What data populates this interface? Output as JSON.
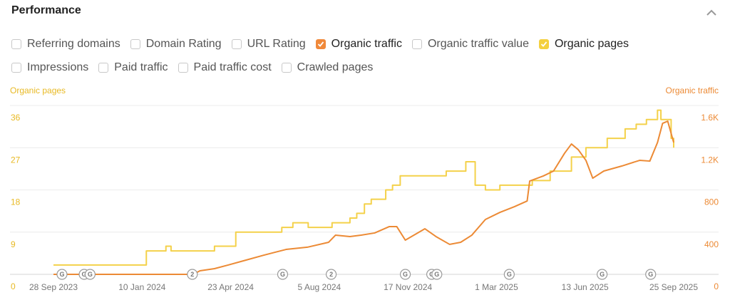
{
  "title": "Performance",
  "options": [
    [
      {
        "label": "Referring domains",
        "checked": false
      },
      {
        "label": "Domain Rating",
        "checked": false
      },
      {
        "label": "URL Rating",
        "checked": false
      },
      {
        "label": "Organic traffic",
        "checked": true,
        "color": "#f0893a"
      },
      {
        "label": "Organic traffic value",
        "checked": false
      },
      {
        "label": "Organic pages",
        "checked": true,
        "color": "#f4d03f"
      }
    ],
    [
      {
        "label": "Impressions",
        "checked": false
      },
      {
        "label": "Paid traffic",
        "checked": false
      },
      {
        "label": "Paid traffic cost",
        "checked": false
      },
      {
        "label": "Crawled pages",
        "checked": false
      }
    ]
  ],
  "chart_data": {
    "type": "line",
    "y_label": "Organic pages",
    "y2_label": "Organic traffic",
    "xlim": [
      "2023-09-28",
      "2025-09-25"
    ],
    "xticks": [
      {
        "value": "2023-09-28",
        "label": "28 Sep 2023"
      },
      {
        "value": "2024-01-10",
        "label": "10 Jan 2024"
      },
      {
        "value": "2024-04-23",
        "label": "23 Apr 2024"
      },
      {
        "value": "2024-08-05",
        "label": "5 Aug 2024"
      },
      {
        "value": "2024-11-17",
        "label": "17 Nov 2024"
      },
      {
        "value": "2025-03-01",
        "label": "1 Mar 2025"
      },
      {
        "value": "2025-06-13",
        "label": "13 Jun 2025"
      },
      {
        "value": "2025-09-25",
        "label": "25 Sep 2025"
      }
    ],
    "ylim": [
      0,
      36
    ],
    "yticks": [
      0,
      9,
      18,
      27,
      36
    ],
    "y2lim": [
      0,
      1600
    ],
    "y2ticks": [
      0,
      400,
      800,
      {
        "value": 1200,
        "label": "1.2K"
      },
      {
        "value": 1600,
        "label": "1.6K"
      }
    ],
    "grid": true,
    "series": [
      {
        "name": "Organic pages",
        "color": "#f4d14a",
        "step": true,
        "x": [
          "2023-09-28",
          "2024-01-15",
          "2024-02-07",
          "2024-02-13",
          "2024-04-04",
          "2024-04-29",
          "2024-06-22",
          "2024-07-05",
          "2024-07-23",
          "2024-08-20",
          "2024-09-10",
          "2024-09-18",
          "2024-09-27",
          "2024-10-05",
          "2024-10-22",
          "2024-10-30",
          "2024-11-08",
          "2025-01-01",
          "2025-01-24",
          "2025-02-04",
          "2025-02-16",
          "2025-03-05",
          "2025-04-12",
          "2025-05-03",
          "2025-05-28",
          "2025-06-14",
          "2025-07-09",
          "2025-07-30",
          "2025-08-12",
          "2025-08-24",
          "2025-09-06",
          "2025-09-10",
          "2025-09-22",
          "2025-09-25"
        ],
        "values": [
          2,
          5,
          6,
          5,
          6,
          9,
          10,
          11,
          10,
          11,
          12,
          13,
          15,
          16,
          18,
          19,
          21,
          22,
          24,
          19,
          18,
          19,
          20,
          22,
          25,
          27,
          29,
          31,
          32,
          33,
          35,
          33,
          29,
          27
        ]
      },
      {
        "name": "Organic traffic",
        "color": "#ec8a35",
        "axis": "y2",
        "x": [
          "2023-09-28",
          "2024-03-10",
          "2024-03-18",
          "2024-04-04",
          "2024-04-20",
          "2024-05-11",
          "2024-06-01",
          "2024-06-27",
          "2024-07-22",
          "2024-08-16",
          "2024-08-24",
          "2024-09-10",
          "2024-09-23",
          "2024-10-09",
          "2024-10-26",
          "2024-11-04",
          "2024-11-14",
          "2024-12-07",
          "2024-12-20",
          "2025-01-05",
          "2025-01-18",
          "2025-01-31",
          "2025-02-16",
          "2025-03-05",
          "2025-03-22",
          "2025-04-06",
          "2025-04-09",
          "2025-04-25",
          "2025-05-07",
          "2025-05-20",
          "2025-05-28",
          "2025-06-05",
          "2025-06-14",
          "2025-06-22",
          "2025-07-05",
          "2025-07-26",
          "2025-08-16",
          "2025-08-28",
          "2025-09-06",
          "2025-09-12",
          "2025-09-18",
          "2025-09-25"
        ],
        "values": [
          0,
          0,
          34,
          54,
          88,
          135,
          182,
          236,
          257,
          304,
          371,
          358,
          371,
          392,
          452,
          452,
          324,
          432,
          358,
          284,
          304,
          371,
          520,
          587,
          641,
          695,
          884,
          932,
          979,
          1148,
          1235,
          1181,
          1080,
          911,
          979,
          1026,
          1080,
          1073,
          1249,
          1431,
          1451,
          1249
        ]
      }
    ],
    "annotations": [
      {
        "x": "2023-10-08",
        "label": "G"
      },
      {
        "x": "2023-11-03",
        "label": "G"
      },
      {
        "x": "2023-11-10",
        "label": "G"
      },
      {
        "x": "2024-03-09",
        "label": "2"
      },
      {
        "x": "2024-06-23",
        "label": "G"
      },
      {
        "x": "2024-08-19",
        "label": "2"
      },
      {
        "x": "2024-11-14",
        "label": "G"
      },
      {
        "x": "2024-12-15",
        "label": "G"
      },
      {
        "x": "2024-12-21",
        "label": "G"
      },
      {
        "x": "2025-03-16",
        "label": "G"
      },
      {
        "x": "2025-07-03",
        "label": "G"
      },
      {
        "x": "2025-08-29",
        "label": "G"
      }
    ]
  }
}
